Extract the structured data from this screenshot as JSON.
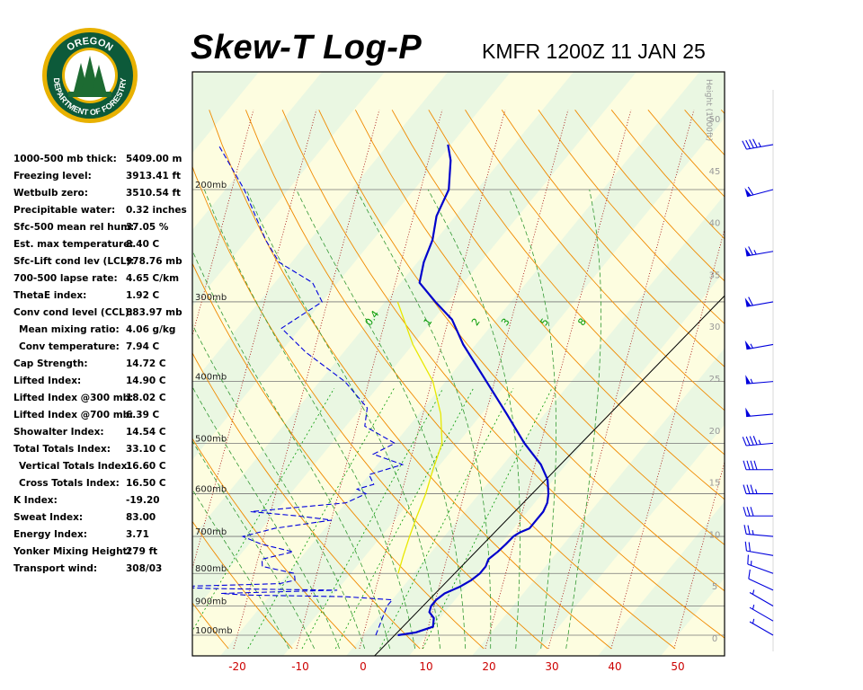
{
  "header": {
    "title": "Skew-T Log-P",
    "subtitle": "KMFR 1200Z 11 JAN 25"
  },
  "logo": {
    "top_text": "OREGON",
    "bottom_text": "DEPARTMENT OF FORESTRY",
    "colors": {
      "ring": "#0d5a3a",
      "rim": "#e8b100",
      "tree": "#1d6b32",
      "sky": "#ffffff"
    }
  },
  "indices": [
    {
      "label": "1000-500 mb thick:",
      "value": "5409.00 m"
    },
    {
      "label": "Freezing level:",
      "value": "3913.41 ft"
    },
    {
      "label": "Wetbulb zero:",
      "value": "3510.54 ft"
    },
    {
      "label": "Precipitable water:",
      "value": "0.32 inches"
    },
    {
      "label": "Sfc-500 mean rel hum:",
      "value": "37.05 %"
    },
    {
      "label": "Est. max temperature:",
      "value": "8.40 C"
    },
    {
      "label": "Sfc-Lift cond lev (LCL):",
      "value": "978.76 mb"
    },
    {
      "label": "700-500 lapse rate:",
      "value": "4.65 C/km"
    },
    {
      "label": "ThetaE index:",
      "value": "1.92 C"
    },
    {
      "label": "Conv cond level (CCL):",
      "value": "883.97 mb"
    },
    {
      "label": "Mean mixing ratio:",
      "value": "4.06 g/kg",
      "indent": true
    },
    {
      "label": "Conv temperature:",
      "value": "7.94 C",
      "indent": true
    },
    {
      "label": "Cap Strength:",
      "value": "14.72 C"
    },
    {
      "label": "Lifted Index:",
      "value": "14.90 C"
    },
    {
      "label": "Lifted Index @300 mb:",
      "value": "18.02 C"
    },
    {
      "label": "Lifted Index @700 mb:",
      "value": "6.39 C"
    },
    {
      "label": "Showalter Index:",
      "value": "14.54 C"
    },
    {
      "label": "Total Totals Index:",
      "value": "33.10 C"
    },
    {
      "label": "Vertical Totals Index:",
      "value": "16.60 C",
      "indent": true
    },
    {
      "label": "Cross Totals Index:",
      "value": "16.50 C",
      "indent": true
    },
    {
      "label": "K Index:",
      "value": "-19.20"
    },
    {
      "label": "Sweat Index:",
      "value": "83.00"
    },
    {
      "label": "Energy Index:",
      "value": "3.71"
    },
    {
      "label": "Yonker Mixing Height:",
      "value": "279 ft"
    },
    {
      "label": "Transport wind:",
      "value": "308/03"
    }
  ],
  "chart_data": {
    "type": "line",
    "title": "Skew-T Log-P",
    "subtitle": "KMFR 1200Z 11 JAN 25",
    "xlabel": "",
    "ylabel": "",
    "x_tick_labels": [
      "-20",
      "-10",
      "0",
      "10",
      "20",
      "30",
      "40",
      "50"
    ],
    "x_ticks": [
      -20,
      -10,
      0,
      10,
      20,
      30,
      40,
      50
    ],
    "pressure_ticks": [
      {
        "p": 200,
        "label": "200mb"
      },
      {
        "p": 300,
        "label": "300mb"
      },
      {
        "p": 400,
        "label": "400mb"
      },
      {
        "p": 500,
        "label": "500mb"
      },
      {
        "p": 600,
        "label": "600mb"
      },
      {
        "p": 700,
        "label": "700mb"
      },
      {
        "p": 800,
        "label": "800mb"
      },
      {
        "p": 900,
        "label": "900mb"
      },
      {
        "p": 1000,
        "label": "1000mb"
      }
    ],
    "height_axis_label": "Height (1000ft)",
    "height_ticks": [
      {
        "kft": 0,
        "label": "0"
      },
      {
        "kft": 5,
        "label": "5"
      },
      {
        "kft": 10,
        "label": "10"
      },
      {
        "kft": 15,
        "label": "15"
      },
      {
        "kft": 20,
        "label": "20"
      },
      {
        "kft": 25,
        "label": "25"
      },
      {
        "kft": 30,
        "label": "30"
      },
      {
        "kft": 35,
        "label": "35"
      },
      {
        "kft": 40,
        "label": "40"
      },
      {
        "kft": 45,
        "label": "45"
      },
      {
        "kft": 50,
        "label": "50"
      }
    ],
    "mixing_ratio_labels": [
      {
        "w": 0.4,
        "label": "0.4"
      },
      {
        "w": 1,
        "label": "1"
      },
      {
        "w": 2,
        "label": "2"
      },
      {
        "w": 3,
        "label": "3"
      },
      {
        "w": 5,
        "label": "5"
      },
      {
        "w": 8,
        "label": "8"
      }
    ],
    "series": [
      {
        "role": "temperature",
        "color": "#0000cc",
        "points": [
          {
            "p": 1000,
            "t": 5.5
          },
          {
            "p": 990,
            "t": 8.0
          },
          {
            "p": 970,
            "t": 10.0
          },
          {
            "p": 940,
            "t": 9.0
          },
          {
            "p": 920,
            "t": 7.5
          },
          {
            "p": 900,
            "t": 7.0
          },
          {
            "p": 880,
            "t": 7.0
          },
          {
            "p": 860,
            "t": 7.5
          },
          {
            "p": 840,
            "t": 9.0
          },
          {
            "p": 820,
            "t": 10.0
          },
          {
            "p": 800,
            "t": 10.5
          },
          {
            "p": 780,
            "t": 10.5
          },
          {
            "p": 760,
            "t": 10.0
          },
          {
            "p": 740,
            "t": 10.5
          },
          {
            "p": 720,
            "t": 10.8
          },
          {
            "p": 700,
            "t": 11.0
          },
          {
            "p": 690,
            "t": 11.5
          },
          {
            "p": 680,
            "t": 12.5
          },
          {
            "p": 660,
            "t": 12.5
          },
          {
            "p": 640,
            "t": 12.5
          },
          {
            "p": 620,
            "t": 12.0
          },
          {
            "p": 600,
            "t": 11.0
          },
          {
            "p": 570,
            "t": 9.0
          },
          {
            "p": 540,
            "t": 6.0
          },
          {
            "p": 500,
            "t": 0.6
          },
          {
            "p": 450,
            "t": -6.0
          },
          {
            "p": 400,
            "t": -13.5
          },
          {
            "p": 350,
            "t": -22.0
          },
          {
            "p": 320,
            "t": -27.0
          },
          {
            "p": 300,
            "t": -32.0
          },
          {
            "p": 280,
            "t": -37.0
          },
          {
            "p": 260,
            "t": -39.0
          },
          {
            "p": 240,
            "t": -40.5
          },
          {
            "p": 220,
            "t": -43.0
          },
          {
            "p": 200,
            "t": -44.5
          },
          {
            "p": 180,
            "t": -48.0
          },
          {
            "p": 170,
            "t": -50.5
          }
        ]
      },
      {
        "role": "dewpoint",
        "color": "#0000dd",
        "points": [
          {
            "p": 1000,
            "t": 2.0
          },
          {
            "p": 900,
            "t": 0.0
          },
          {
            "p": 880,
            "t": 0.0
          },
          {
            "p": 870,
            "t": -8.0
          },
          {
            "p": 865,
            "t": -24.0
          },
          {
            "p": 860,
            "t": -28.0
          },
          {
            "p": 850,
            "t": -10.0
          },
          {
            "p": 845,
            "t": -30.0
          },
          {
            "p": 840,
            "t": -38.0
          },
          {
            "p": 830,
            "t": -20.0
          },
          {
            "p": 820,
            "t": -18.0
          },
          {
            "p": 800,
            "t": -19.0
          },
          {
            "p": 780,
            "t": -25.0
          },
          {
            "p": 760,
            "t": -26.0
          },
          {
            "p": 740,
            "t": -22.0
          },
          {
            "p": 720,
            "t": -28.0
          },
          {
            "p": 700,
            "t": -32.0
          },
          {
            "p": 680,
            "t": -28.0
          },
          {
            "p": 660,
            "t": -20.0
          },
          {
            "p": 650,
            "t": -26.0
          },
          {
            "p": 640,
            "t": -34.0
          },
          {
            "p": 620,
            "t": -20.0
          },
          {
            "p": 600,
            "t": -18.0
          },
          {
            "p": 590,
            "t": -20.0
          },
          {
            "p": 580,
            "t": -18.0
          },
          {
            "p": 560,
            "t": -20.0
          },
          {
            "p": 540,
            "t": -16.0
          },
          {
            "p": 520,
            "t": -22.0
          },
          {
            "p": 500,
            "t": -20.0
          },
          {
            "p": 470,
            "t": -27.0
          },
          {
            "p": 440,
            "t": -29.0
          },
          {
            "p": 400,
            "t": -36.0
          },
          {
            "p": 360,
            "t": -46.0
          },
          {
            "p": 330,
            "t": -53.0
          },
          {
            "p": 300,
            "t": -50.0
          },
          {
            "p": 280,
            "t": -54.0
          },
          {
            "p": 260,
            "t": -62.0
          },
          {
            "p": 240,
            "t": -67.0
          },
          {
            "p": 200,
            "t": -77.0
          },
          {
            "p": 170,
            "t": -87.0
          }
        ]
      },
      {
        "role": "parcel",
        "color": "#e8e800",
        "points": [
          {
            "p": 800,
            "t": -2.5
          },
          {
            "p": 750,
            "t": -4.0
          },
          {
            "p": 700,
            "t": -5.5
          },
          {
            "p": 650,
            "t": -7.0
          },
          {
            "p": 600,
            "t": -8.5
          },
          {
            "p": 550,
            "t": -10.5
          },
          {
            "p": 500,
            "t": -12.5
          },
          {
            "p": 450,
            "t": -16.5
          },
          {
            "p": 400,
            "t": -22.0
          },
          {
            "p": 350,
            "t": -30.0
          },
          {
            "p": 300,
            "t": -38.0
          }
        ]
      }
    ],
    "wind_barbs": [
      {
        "p": 1000,
        "dir": 300,
        "kt": 3
      },
      {
        "p": 950,
        "dir": 300,
        "kt": 5
      },
      {
        "p": 900,
        "dir": 300,
        "kt": 5
      },
      {
        "p": 850,
        "dir": 295,
        "kt": 10
      },
      {
        "p": 800,
        "dir": 290,
        "kt": 15
      },
      {
        "p": 750,
        "dir": 280,
        "kt": 20
      },
      {
        "p": 700,
        "dir": 275,
        "kt": 25
      },
      {
        "p": 650,
        "dir": 270,
        "kt": 30
      },
      {
        "p": 600,
        "dir": 270,
        "kt": 35
      },
      {
        "p": 550,
        "dir": 270,
        "kt": 40
      },
      {
        "p": 500,
        "dir": 265,
        "kt": 45
      },
      {
        "p": 450,
        "dir": 265,
        "kt": 50
      },
      {
        "p": 400,
        "dir": 265,
        "kt": 55
      },
      {
        "p": 350,
        "dir": 260,
        "kt": 55
      },
      {
        "p": 300,
        "dir": 260,
        "kt": 60
      },
      {
        "p": 250,
        "dir": 260,
        "kt": 65
      },
      {
        "p": 200,
        "dir": 255,
        "kt": 60
      },
      {
        "p": 170,
        "dir": 260,
        "kt": 45
      }
    ],
    "colors": {
      "isotherm_band_a": "#eaf7e2",
      "isotherm_band_b": "#fdfde0",
      "isobar": "#777777",
      "dry_adiabat": "#f08a00",
      "moist_adiabat": "#339933",
      "mixing_ratio": "#009900",
      "isohume": "#a00000",
      "reference_line": "#000000",
      "x_tick_text": "#cc0000"
    }
  }
}
